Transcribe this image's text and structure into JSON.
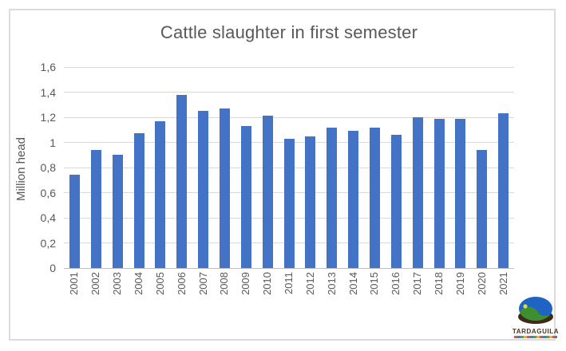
{
  "window": {
    "background": "#ffffff",
    "border_color": "#dcdcdc"
  },
  "chart_data": {
    "type": "bar",
    "title": "Cattle slaughter in first semester",
    "xlabel": "",
    "ylabel": "Million head",
    "categories": [
      "2001",
      "2002",
      "2003",
      "2004",
      "2005",
      "2006",
      "2007",
      "2008",
      "2009",
      "2010",
      "2011",
      "2012",
      "2013",
      "2014",
      "2015",
      "2016",
      "2017",
      "2018",
      "2019",
      "2020",
      "2021"
    ],
    "values": [
      0.74,
      0.94,
      0.9,
      1.07,
      1.17,
      1.38,
      1.25,
      1.27,
      1.13,
      1.21,
      1.03,
      1.05,
      1.12,
      1.09,
      1.12,
      1.06,
      1.2,
      1.19,
      1.19,
      0.94,
      1.23
    ],
    "ylim": [
      0,
      1.6
    ],
    "ytick_step": 0.2,
    "ytick_labels": [
      "0",
      "0,2",
      "0,4",
      "0,6",
      "0,8",
      "1",
      "1,2",
      "1,4",
      "1,6"
    ],
    "decimal_separator": ",",
    "grid": true,
    "legend_position": "none",
    "bar_color": "#4472c4",
    "gridline_color": "#d9d9d9",
    "axis_line_color": "#bfbfbf",
    "text_color": "#595959"
  },
  "logo": {
    "icon": "tardaguila-landscape-logo",
    "text": "TARDAGUILA",
    "colors": {
      "sky": "#1f63c5",
      "hill": "#3e8f2f",
      "sun": "#e8d83a",
      "base": "#3d2b17",
      "text": "#4a3724"
    }
  }
}
